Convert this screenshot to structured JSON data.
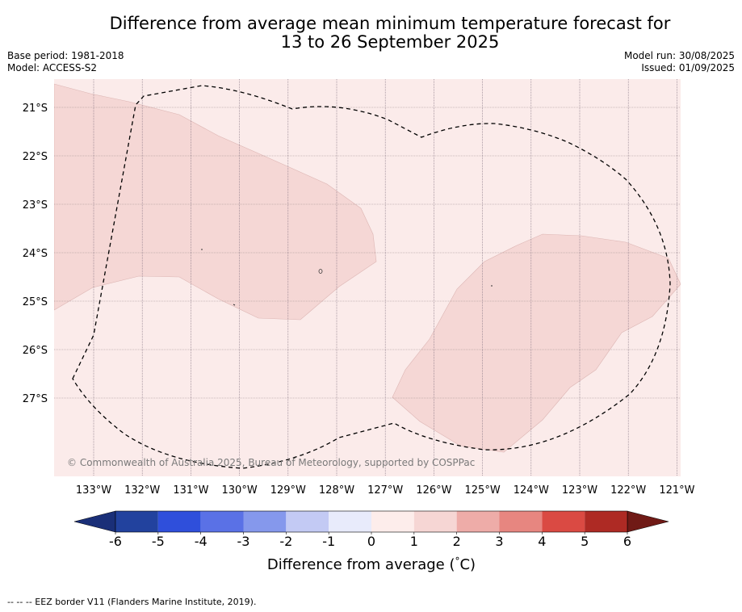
{
  "title": {
    "line1": "Difference from average mean minimum temperature forecast for",
    "line2": "13 to 26 September 2025"
  },
  "meta": {
    "base_period": "Base period: 1981-2018",
    "model": "Model: ACCESS-S2",
    "model_run": "Model run: 30/08/2025",
    "issued": "Issued: 01/09/2025"
  },
  "map": {
    "lat_labels": [
      "21°S",
      "22°S",
      "23°S",
      "24°S",
      "25°S",
      "26°S",
      "27°S"
    ],
    "lon_labels": [
      "133°W",
      "132°W",
      "131°W",
      "130°W",
      "129°W",
      "128°W",
      "127°W",
      "126°W",
      "125°W",
      "124°W",
      "123°W",
      "122°W",
      "121°W"
    ],
    "copyright": "© Commonwealth of Australia 2025, Bureau of Meteorology, supported by COSPPac",
    "background_fill": "#fbebea",
    "anomaly_fill": "#f5d7d5"
  },
  "colorbar": {
    "tick_labels": [
      "-6",
      "-5",
      "-4",
      "-3",
      "-2",
      "-1",
      "0",
      "1",
      "2",
      "3",
      "4",
      "5",
      "6"
    ],
    "colors": [
      "#22429e",
      "#2f4fdb",
      "#5a71e6",
      "#8598ec",
      "#c3caf4",
      "#e8ebfb",
      "#fdedeb",
      "#f6d6d4",
      "#eeaca8",
      "#e78680",
      "#da4a43",
      "#ae2a24"
    ],
    "under_color": "#1a2f78",
    "over_color": "#701a16",
    "label": "Difference from average (",
    "degree_symbol": "°",
    "unit": "C)"
  },
  "footnote": "-- -- -- EEZ border V11 (Flanders Marine Institute, 2019)."
}
